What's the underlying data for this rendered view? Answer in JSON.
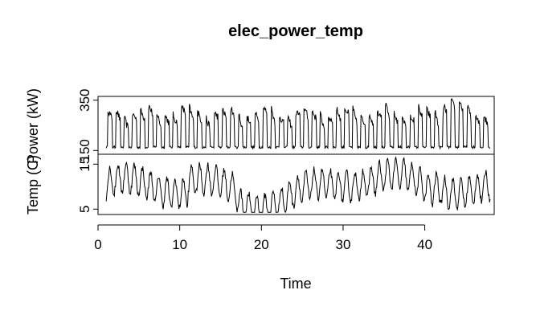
{
  "chart_data": {
    "type": "line",
    "title": "elec_power_temp",
    "xlabel": "Time",
    "xlim": [
      0,
      48.5
    ],
    "x_ticks": [
      0,
      10,
      20,
      30,
      40
    ],
    "panels": [
      {
        "name": "power",
        "ylabel": "Power (kW)",
        "ylim": [
          135,
          365
        ],
        "y_ticks": [
          150,
          350
        ],
        "x_start": 1.0,
        "x_end": 48.0,
        "n_points": 660,
        "daily_cycles": 47,
        "base_kW": 158,
        "peak_kW_typical": 305,
        "peak_kW_max": 358,
        "peak_kW_at_max": 43.8
      },
      {
        "name": "temp",
        "ylabel": "Temp (C)",
        "ylim": [
          3.8,
          17.2
        ],
        "y_ticks": [
          5,
          15
        ],
        "x_start": 1.0,
        "x_end": 48.0,
        "n_points": 660,
        "min_C": 4.3,
        "max_C": 16.5
      }
    ]
  }
}
